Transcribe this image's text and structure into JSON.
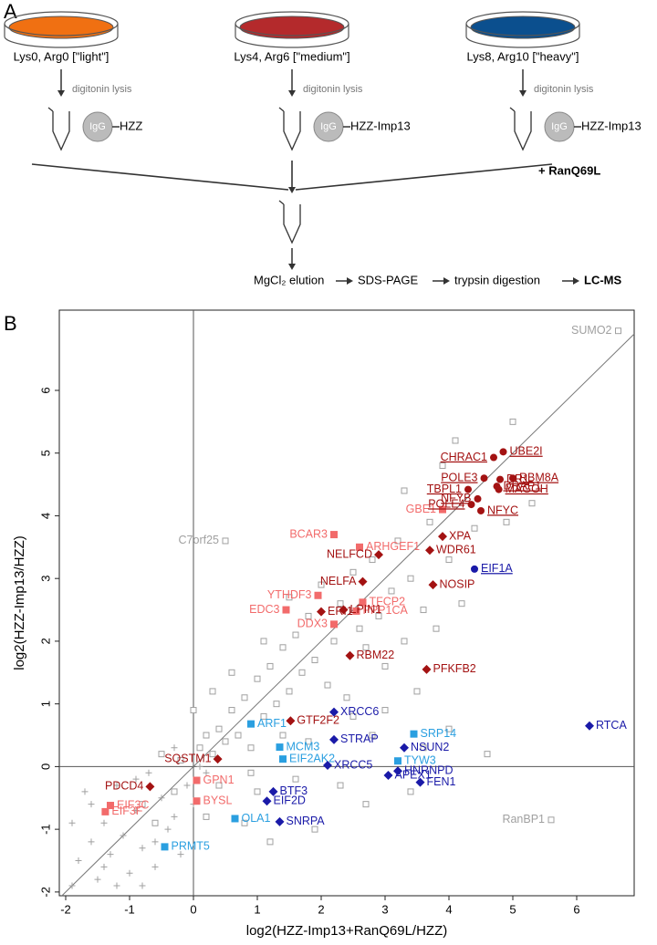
{
  "diagram": {
    "panel": "A",
    "conditions": [
      {
        "label": "Lys0, Arg0 [\"light\"]",
        "color": "#f07012",
        "step": "digitonin lysis",
        "antibody": "IgG",
        "bait": "HZZ"
      },
      {
        "label": "Lys4, Arg6 [\"medium\"]",
        "color": "#b42a2c",
        "step": "digitonin lysis",
        "antibody": "IgG",
        "bait": "HZZ-Imp13"
      },
      {
        "label": "Lys8, Arg10 [\"heavy\"]",
        "color": "#0b4f8e",
        "step": "digitonin lysis",
        "antibody": "IgG",
        "bait": "HZZ-Imp13"
      }
    ],
    "addition": "+ RanQ69L",
    "steps": [
      "MgCl₂ elution",
      "SDS-PAGE",
      "trypsin digestion",
      "LC-MS"
    ]
  },
  "chart_data": {
    "type": "scatter",
    "panel": "B",
    "x_label": "log2(HZZ-Imp13+RanQ69L/HZZ)",
    "y_label": "log2(HZZ-Imp13/HZZ)",
    "xlim": [
      -2.1,
      6.9
    ],
    "ylim": [
      -2.06,
      7.28
    ],
    "xticks": [
      -2,
      -1,
      0,
      1,
      2,
      3,
      4,
      5,
      6
    ],
    "yticks": [
      -2,
      -1,
      0,
      1,
      2,
      3,
      4,
      5,
      6
    ],
    "diagonal": true,
    "series": [
      {
        "marker": "circle",
        "color": "#a31212",
        "underline": true,
        "labels": [
          "UBE2I",
          "CHRAC1",
          "POLE3",
          "DR1",
          "RBM8A",
          "DRAP1",
          "MAGOH",
          "TBPL1",
          "NFYB",
          "NFYC",
          "POLE4"
        ],
        "x": [
          4.85,
          4.7,
          4.55,
          4.8,
          5.0,
          4.75,
          4.78,
          4.3,
          4.45,
          4.5,
          4.35
        ],
        "y": [
          5.02,
          4.93,
          4.6,
          4.58,
          4.6,
          4.47,
          4.42,
          4.42,
          4.27,
          4.08,
          4.18
        ]
      },
      {
        "marker": "circle",
        "color": "#1a1aa8",
        "underline": true,
        "labels": [
          "EIF1A"
        ],
        "x": [
          4.4
        ],
        "y": [
          3.15
        ]
      },
      {
        "marker": "diamond",
        "color": "#a31212",
        "underline": false,
        "labels": [
          "XPA",
          "WDR61",
          "NELFCD",
          "NELFA",
          "NOSIP",
          "ERI1",
          "LPIN1",
          "RBM22",
          "PFKFB2",
          "GTF2F2",
          "SQSTM1",
          "PDCD4"
        ],
        "x": [
          3.9,
          3.7,
          2.9,
          2.65,
          3.75,
          2.0,
          2.35,
          2.45,
          3.65,
          1.52,
          0.38,
          -0.68
        ],
        "y": [
          3.67,
          3.45,
          3.38,
          2.95,
          2.9,
          2.47,
          2.5,
          1.77,
          1.55,
          0.73,
          0.12,
          -0.32
        ]
      },
      {
        "marker": "square",
        "color": "#f26b6b",
        "underline": false,
        "labels": [
          "BCAR3",
          "ARHGEF1",
          "GBE1",
          "YTHDF3",
          "TFCP2",
          "PPP1CA",
          "EDC3",
          "DDX3",
          "GPN1",
          "BYSL",
          "EIF3C",
          "EIF3F"
        ],
        "x": [
          2.2,
          2.6,
          3.9,
          1.95,
          2.65,
          2.55,
          1.45,
          2.2,
          0.05,
          0.05,
          -1.3,
          -1.38
        ],
        "y": [
          3.7,
          3.5,
          4.1,
          2.73,
          2.62,
          2.48,
          2.5,
          2.27,
          -0.22,
          -0.55,
          -0.62,
          -0.72
        ]
      },
      {
        "marker": "diamond",
        "color": "#1a1aa8",
        "underline": false,
        "labels": [
          "XRCC6",
          "STRAP",
          "NSUN2",
          "XRCC5",
          "HNRNPD",
          "APEX1",
          "FEN1",
          "BTF3",
          "EIF2D",
          "SNRPA",
          "RTCA"
        ],
        "x": [
          2.2,
          2.2,
          3.3,
          2.1,
          3.2,
          3.05,
          3.55,
          1.25,
          1.15,
          1.35,
          6.2
        ],
        "y": [
          0.87,
          0.43,
          0.3,
          0.02,
          -0.07,
          -0.14,
          -0.25,
          -0.4,
          -0.55,
          -0.88,
          0.65
        ]
      },
      {
        "marker": "square",
        "color": "#2a9fe0",
        "underline": false,
        "labels": [
          "ARF1",
          "MCM3",
          "EIF2AK2",
          "SRP14",
          "TYW3",
          "OLA1",
          "PRMT5"
        ],
        "x": [
          0.9,
          1.35,
          1.4,
          3.45,
          3.2,
          0.65,
          -0.45
        ],
        "y": [
          0.68,
          0.31,
          0.12,
          0.52,
          0.09,
          -0.83,
          -1.28
        ]
      },
      {
        "marker": "open-square",
        "color": "#a0a0a0",
        "underline": false,
        "labels": [
          "SUMO2",
          "C7orf25",
          "RanBP1"
        ],
        "x": [
          6.65,
          0.5,
          5.6
        ],
        "y": [
          6.95,
          3.6,
          -0.85
        ]
      },
      {
        "marker": "open-square",
        "color": "#a0a0a0",
        "x": [
          0.1,
          0.2,
          0.3,
          0.4,
          0.5,
          0.6,
          0.7,
          0.8,
          0.9,
          1.0,
          1.1,
          1.2,
          1.3,
          1.4,
          1.5,
          1.6,
          1.7,
          1.8,
          1.9,
          2.0,
          2.1,
          2.2,
          2.3,
          2.4,
          2.5,
          2.6,
          2.7,
          2.8,
          2.9,
          3.0,
          3.1,
          3.2,
          3.3,
          3.4,
          3.5,
          3.6,
          3.7,
          3.8,
          4.0,
          4.2,
          4.4,
          2.5,
          2.8,
          3.0,
          3.6,
          4.0,
          4.6,
          1.8,
          2.3,
          1.6,
          1.0,
          0.8,
          1.2,
          1.9,
          0.4,
          0.2,
          -0.2,
          -0.3,
          -0.5,
          0.0,
          0.3,
          0.6,
          1.1,
          1.5,
          3.3,
          3.9,
          4.1,
          5.0,
          4.9,
          5.3,
          2.7,
          3.4,
          1.4,
          0.9,
          -0.8,
          -0.6
        ],
        "y": [
          0.3,
          0.5,
          0.2,
          0.6,
          0.4,
          0.9,
          0.5,
          1.1,
          0.3,
          1.4,
          0.8,
          1.6,
          1.0,
          1.9,
          1.2,
          2.1,
          1.5,
          2.4,
          1.7,
          2.9,
          1.3,
          2.0,
          2.6,
          1.1,
          3.1,
          2.2,
          1.9,
          3.3,
          2.4,
          1.6,
          2.8,
          3.6,
          2.0,
          3.0,
          1.2,
          2.5,
          3.9,
          2.2,
          3.3,
          2.6,
          3.8,
          0.8,
          0.5,
          0.9,
          0.3,
          0.6,
          0.2,
          0.4,
          -0.3,
          -0.2,
          -0.4,
          -0.9,
          -1.2,
          -1.0,
          -0.3,
          -0.8,
          0.1,
          -0.4,
          0.2,
          0.9,
          1.2,
          1.5,
          2.0,
          2.7,
          4.4,
          4.8,
          5.2,
          5.5,
          3.9,
          4.2,
          -0.6,
          -0.4,
          0.5,
          -0.1,
          -0.6,
          -0.9
        ]
      },
      {
        "marker": "plus",
        "color": "#a0a0a0",
        "x": [
          -1.9,
          -1.8,
          -1.7,
          -1.6,
          -1.5,
          -1.4,
          -1.3,
          -1.2,
          -1.1,
          -1.0,
          -0.9,
          -0.8,
          -0.7,
          -0.6,
          -0.5,
          -0.4,
          -0.3,
          -0.2,
          -0.1,
          0.0,
          0.1,
          -1.9,
          -1.2,
          -0.8,
          -1.6,
          -0.9,
          -0.3,
          0.2,
          -1.4,
          -0.6
        ],
        "y": [
          -0.9,
          -1.5,
          -0.4,
          -1.2,
          -1.8,
          -0.9,
          -1.4,
          -0.3,
          -1.1,
          -1.7,
          -0.7,
          -1.3,
          -0.1,
          -1.6,
          -0.5,
          -1.0,
          -0.8,
          -1.4,
          -0.3,
          -0.6,
          0.0,
          -1.9,
          -1.9,
          -1.9,
          -0.6,
          -0.2,
          0.3,
          -0.1,
          -1.6,
          -1.2
        ]
      }
    ]
  }
}
